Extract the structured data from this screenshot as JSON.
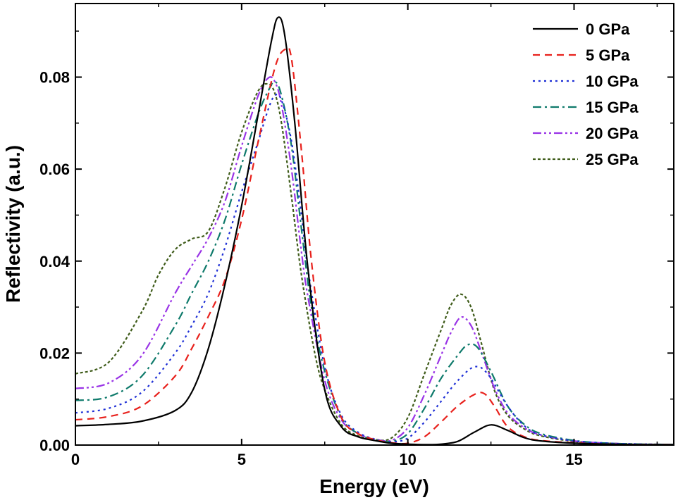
{
  "chart_data": {
    "type": "line",
    "title": "",
    "xlabel": "Energy (eV)",
    "ylabel": "Reflectivity (a.u.)",
    "xlim": [
      0,
      18
    ],
    "ylim": [
      0,
      0.096
    ],
    "x_ticks": [
      0,
      5,
      10,
      15
    ],
    "x_tick_labels": [
      "0",
      "5",
      "10",
      "15"
    ],
    "y_ticks": [
      0,
      0.02,
      0.04,
      0.06,
      0.08
    ],
    "y_tick_labels": [
      "0.00",
      "0.02",
      "0.04",
      "0.06",
      "0.08"
    ],
    "grid": false,
    "legend_position": "top-right",
    "series": [
      {
        "name": "0 GPa",
        "color": "#000000",
        "dash": "solid",
        "x": [
          0,
          1,
          2,
          3,
          3.5,
          4,
          4.5,
          5,
          5.5,
          5.9,
          6.1,
          6.3,
          6.6,
          7,
          7.5,
          8,
          8.5,
          9,
          9.5,
          10,
          10.5,
          11,
          11.5,
          12,
          12.5,
          13,
          13.5,
          14,
          15,
          16,
          17,
          18
        ],
        "y": [
          0.0042,
          0.0045,
          0.0052,
          0.0075,
          0.0115,
          0.021,
          0.035,
          0.052,
          0.072,
          0.088,
          0.093,
          0.089,
          0.07,
          0.038,
          0.012,
          0.004,
          0.0018,
          0.001,
          0.0004,
          0.0002,
          0.0001,
          0.0002,
          0.0008,
          0.0028,
          0.0044,
          0.0032,
          0.0016,
          0.0009,
          0.0004,
          0.0002,
          0.0001,
          0.0001
        ]
      },
      {
        "name": "5 GPa",
        "color": "#e8211c",
        "dash": "10,7",
        "x": [
          0,
          1,
          2,
          3,
          3.5,
          4,
          4.5,
          5,
          5.5,
          6,
          6.3,
          6.5,
          6.8,
          7.1,
          7.5,
          8,
          8.5,
          9,
          9.5,
          10,
          10.5,
          11,
          11.5,
          12,
          12.3,
          12.6,
          13,
          13.5,
          14,
          15,
          16,
          17,
          18
        ],
        "y": [
          0.0055,
          0.0062,
          0.0085,
          0.015,
          0.021,
          0.028,
          0.036,
          0.049,
          0.066,
          0.082,
          0.086,
          0.084,
          0.064,
          0.04,
          0.018,
          0.006,
          0.0025,
          0.0012,
          0.0005,
          0.0004,
          0.0018,
          0.005,
          0.0085,
          0.011,
          0.0112,
          0.0085,
          0.004,
          0.0018,
          0.001,
          0.0005,
          0.0002,
          0.0001,
          0.0001
        ]
      },
      {
        "name": "10 GPa",
        "color": "#1f30d6",
        "dash": "3,5",
        "x": [
          0,
          1,
          2,
          3,
          3.5,
          4,
          4.5,
          5,
          5.5,
          5.8,
          6,
          6.2,
          6.5,
          6.8,
          7,
          7.5,
          8,
          8.5,
          9,
          9.5,
          10,
          10.5,
          11,
          11.5,
          12,
          12.4,
          13,
          13.5,
          14,
          15,
          16,
          17,
          18
        ],
        "y": [
          0.007,
          0.008,
          0.0115,
          0.02,
          0.026,
          0.033,
          0.043,
          0.055,
          0.066,
          0.073,
          0.076,
          0.075,
          0.066,
          0.05,
          0.038,
          0.017,
          0.0065,
          0.0028,
          0.0013,
          0.0007,
          0.0015,
          0.005,
          0.0095,
          0.014,
          0.017,
          0.0155,
          0.0085,
          0.0042,
          0.0022,
          0.0009,
          0.0004,
          0.0002,
          0.0001
        ]
      },
      {
        "name": "15 GPa",
        "color": "#0e7a6b",
        "dash": "12,5,3,5",
        "x": [
          0,
          1,
          2,
          3,
          3.5,
          4,
          4.5,
          5,
          5.5,
          5.8,
          6,
          6.2,
          6.5,
          6.8,
          7.1,
          7.5,
          8,
          8.5,
          9,
          9.5,
          10,
          10.5,
          11,
          11.5,
          11.8,
          12.1,
          12.5,
          13,
          13.5,
          14,
          15,
          16,
          17,
          18
        ],
        "y": [
          0.0097,
          0.0105,
          0.015,
          0.026,
          0.033,
          0.04,
          0.049,
          0.061,
          0.072,
          0.077,
          0.079,
          0.076,
          0.065,
          0.047,
          0.03,
          0.016,
          0.006,
          0.0025,
          0.0012,
          0.0008,
          0.0025,
          0.008,
          0.0145,
          0.0195,
          0.0218,
          0.0212,
          0.016,
          0.0085,
          0.0045,
          0.0025,
          0.001,
          0.0004,
          0.0002,
          0.0001
        ]
      },
      {
        "name": "20 GPa",
        "color": "#9933e6",
        "dash": "12,4,3,4,3,4",
        "x": [
          0,
          1,
          2,
          3,
          3.5,
          4,
          4.5,
          5,
          5.5,
          5.8,
          6,
          6.2,
          6.5,
          6.8,
          7,
          7.5,
          8,
          8.5,
          9,
          9.5,
          10,
          10.5,
          11,
          11.3,
          11.6,
          11.9,
          12.2,
          12.6,
          13,
          13.5,
          14,
          15,
          16,
          17,
          18
        ],
        "y": [
          0.0123,
          0.0135,
          0.0195,
          0.033,
          0.039,
          0.045,
          0.053,
          0.065,
          0.076,
          0.0798,
          0.079,
          0.074,
          0.06,
          0.042,
          0.032,
          0.014,
          0.0055,
          0.0025,
          0.0013,
          0.001,
          0.0038,
          0.011,
          0.0195,
          0.0245,
          0.0278,
          0.026,
          0.0205,
          0.0125,
          0.007,
          0.0038,
          0.0022,
          0.0009,
          0.0004,
          0.0002,
          0.0001
        ]
      },
      {
        "name": "25 GPa",
        "color": "#3f5c1a",
        "dash": "4,3",
        "x": [
          0,
          1,
          2,
          2.5,
          3,
          3.5,
          4,
          4.5,
          5,
          5.5,
          5.8,
          6,
          6.2,
          6.5,
          6.8,
          7.2,
          7.5,
          8,
          8.5,
          9,
          9.5,
          10,
          10.5,
          11,
          11.3,
          11.6,
          11.9,
          12.2,
          12.6,
          13,
          13.5,
          14,
          15,
          16,
          17,
          18
        ],
        "y": [
          0.0155,
          0.018,
          0.029,
          0.037,
          0.0425,
          0.0448,
          0.0465,
          0.056,
          0.068,
          0.077,
          0.0785,
          0.0765,
          0.07,
          0.054,
          0.037,
          0.02,
          0.012,
          0.0045,
          0.002,
          0.0012,
          0.0015,
          0.006,
          0.0155,
          0.025,
          0.0305,
          0.0328,
          0.03,
          0.0225,
          0.012,
          0.0065,
          0.0035,
          0.002,
          0.0008,
          0.0004,
          0.0002,
          0.0001
        ]
      }
    ]
  }
}
